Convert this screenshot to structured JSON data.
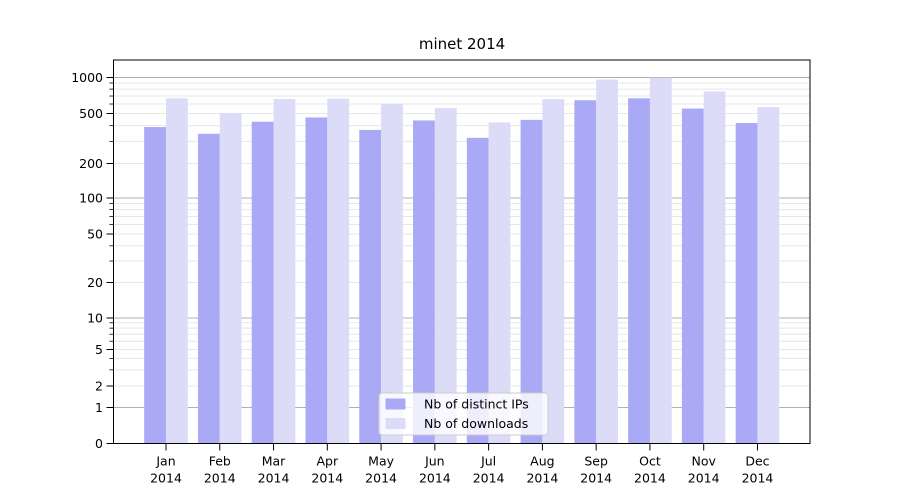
{
  "chart_data": {
    "type": "bar",
    "title": "minet 2014",
    "x_months": [
      "Jan",
      "Feb",
      "Mar",
      "Apr",
      "May",
      "Jun",
      "Jul",
      "Aug",
      "Sep",
      "Oct",
      "Nov",
      "Dec"
    ],
    "x_year": "2014",
    "categories": [
      "Jan 2014",
      "Feb 2014",
      "Mar 2014",
      "Apr 2014",
      "May 2014",
      "Jun 2014",
      "Jul 2014",
      "Aug 2014",
      "Sep 2014",
      "Oct 2014",
      "Nov 2014",
      "Dec 2014"
    ],
    "series": [
      {
        "name": "Nb of distinct IPs",
        "color": "#a9a9f6",
        "values": [
          390,
          345,
          430,
          465,
          370,
          440,
          320,
          445,
          645,
          670,
          550,
          420
        ]
      },
      {
        "name": "Nb of downloads",
        "color": "#dcdcf9",
        "values": [
          670,
          505,
          660,
          665,
          600,
          555,
          425,
          660,
          960,
          995,
          765,
          565
        ]
      }
    ],
    "yscale": "symlog",
    "ylim": [
      0,
      1400
    ],
    "y_tick_values": [
      0,
      1,
      2,
      5,
      10,
      20,
      50,
      100,
      200,
      500,
      1000
    ],
    "y_tick_labels": [
      "0",
      "1",
      "2",
      "5",
      "10",
      "20",
      "50",
      "100",
      "200",
      "500",
      "1000"
    ],
    "grid": true,
    "legend_position": "lower center",
    "colors": {
      "grid_major": "#b0b0b0",
      "grid_minor": "#e7e7e7",
      "spine": "#000000",
      "legend_border": "#cccccc",
      "legend_bg": "rgba(255,255,255,0.8)"
    }
  }
}
